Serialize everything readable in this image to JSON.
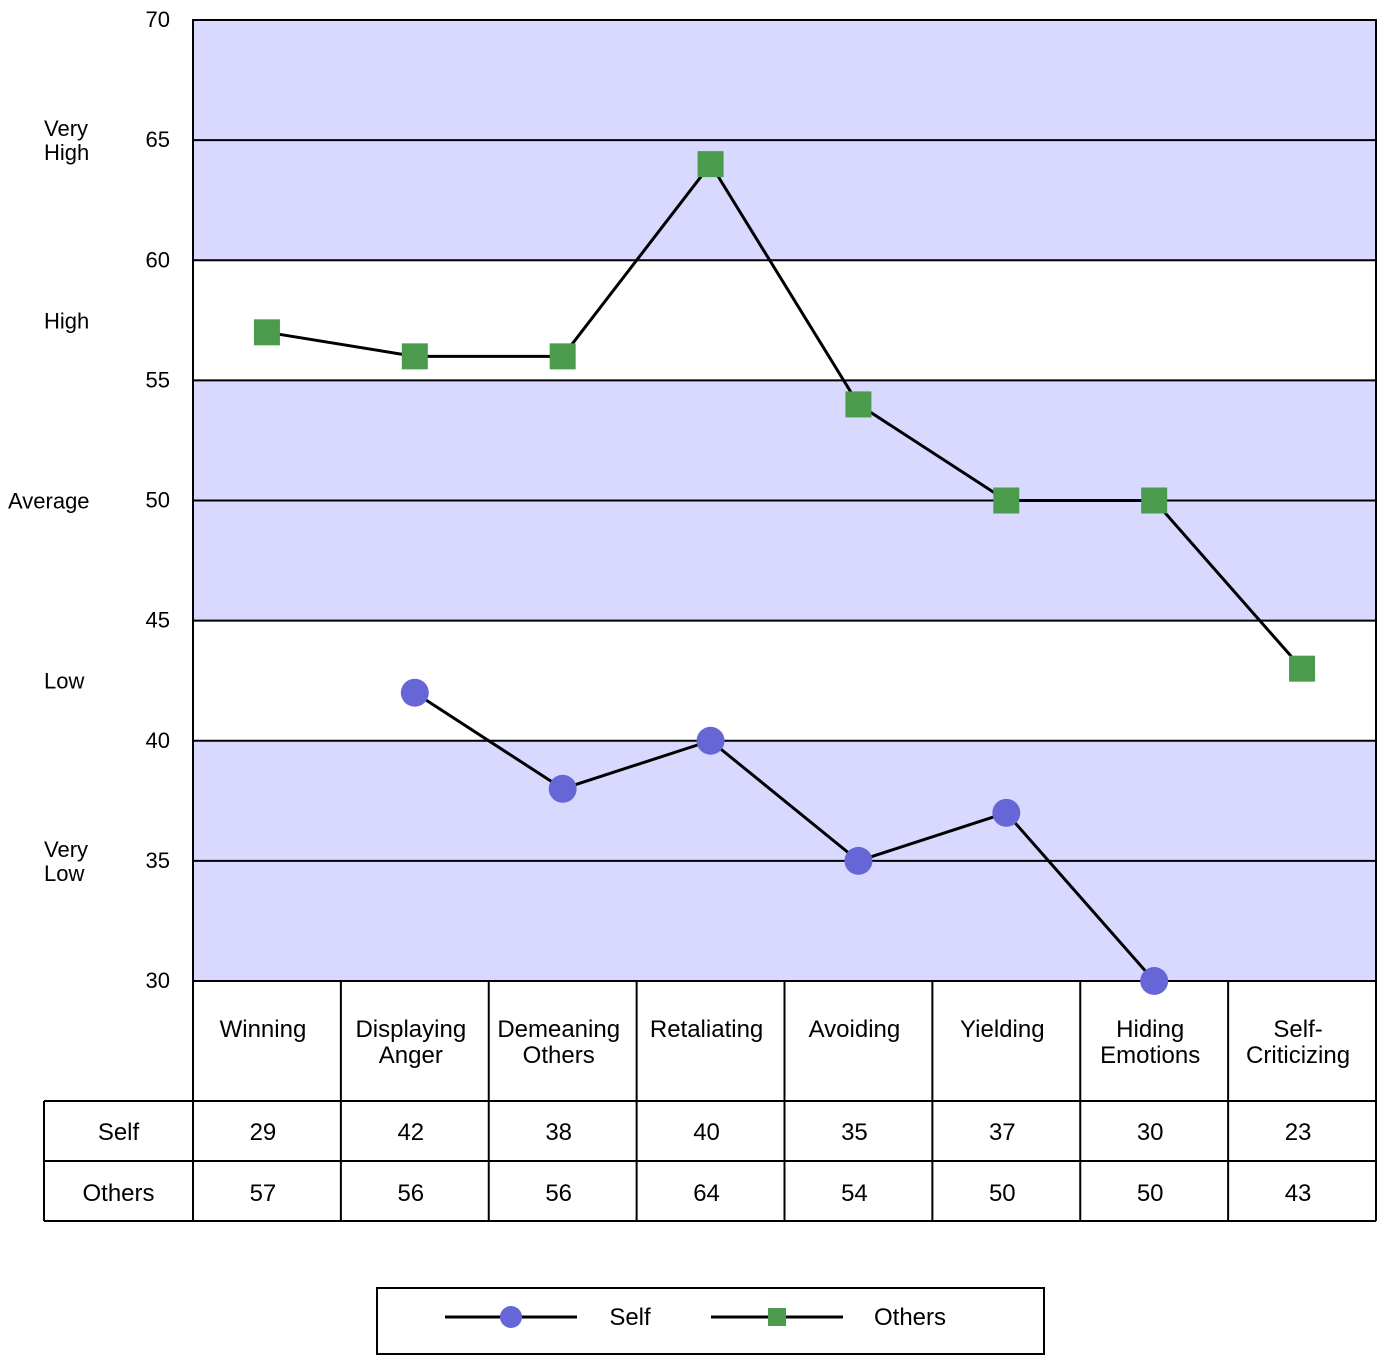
{
  "chart_data": {
    "type": "line",
    "categories": [
      [
        "Winning"
      ],
      [
        "Displaying",
        "Anger"
      ],
      [
        "Demeaning",
        "Others"
      ],
      [
        "Retaliating"
      ],
      [
        "Avoiding"
      ],
      [
        "Yielding"
      ],
      [
        "Hiding",
        "Emotions"
      ],
      [
        "Self-",
        "Criticizing"
      ]
    ],
    "series": [
      {
        "name": "Self",
        "marker": "circle",
        "color": "#6666d6",
        "values": [
          29,
          42,
          38,
          40,
          35,
          37,
          30,
          23
        ]
      },
      {
        "name": "Others",
        "marker": "square",
        "color": "#4c9a4c",
        "values": [
          57,
          56,
          56,
          64,
          54,
          50,
          50,
          43
        ]
      }
    ],
    "ylim": [
      30,
      70
    ],
    "yticks": [
      30,
      35,
      40,
      45,
      50,
      55,
      60,
      65,
      70
    ],
    "bands": [
      {
        "label": [
          "Very",
          "High"
        ],
        "range": [
          65,
          70
        ],
        "shaded": true
      },
      {
        "label": [
          "Very",
          "High"
        ],
        "range": [
          60,
          65
        ],
        "shaded": true
      },
      {
        "label": [
          "High"
        ],
        "range": [
          55,
          60
        ],
        "shaded": false
      },
      {
        "label": [
          "Average"
        ],
        "range": [
          45,
          55
        ],
        "shaded": true
      },
      {
        "label": [
          "Low"
        ],
        "range": [
          40,
          45
        ],
        "shaded": false
      },
      {
        "label": [
          "Very",
          "Low"
        ],
        "range": [
          30,
          40
        ],
        "shaded": true
      }
    ],
    "band_labels": [
      {
        "lines": [
          "Very",
          "High"
        ],
        "at": 65.0
      },
      {
        "lines": [
          "High"
        ],
        "at": 57.5
      },
      {
        "lines": [
          "Average"
        ],
        "at": 50.0
      },
      {
        "lines": [
          "Low"
        ],
        "at": 42.5
      },
      {
        "lines": [
          "Very",
          "Low"
        ],
        "at": 35.0
      }
    ],
    "band_color": "#d9d9ff",
    "grid": true,
    "legend": "bottom-center",
    "table_rows": [
      "Self",
      "Others"
    ]
  }
}
